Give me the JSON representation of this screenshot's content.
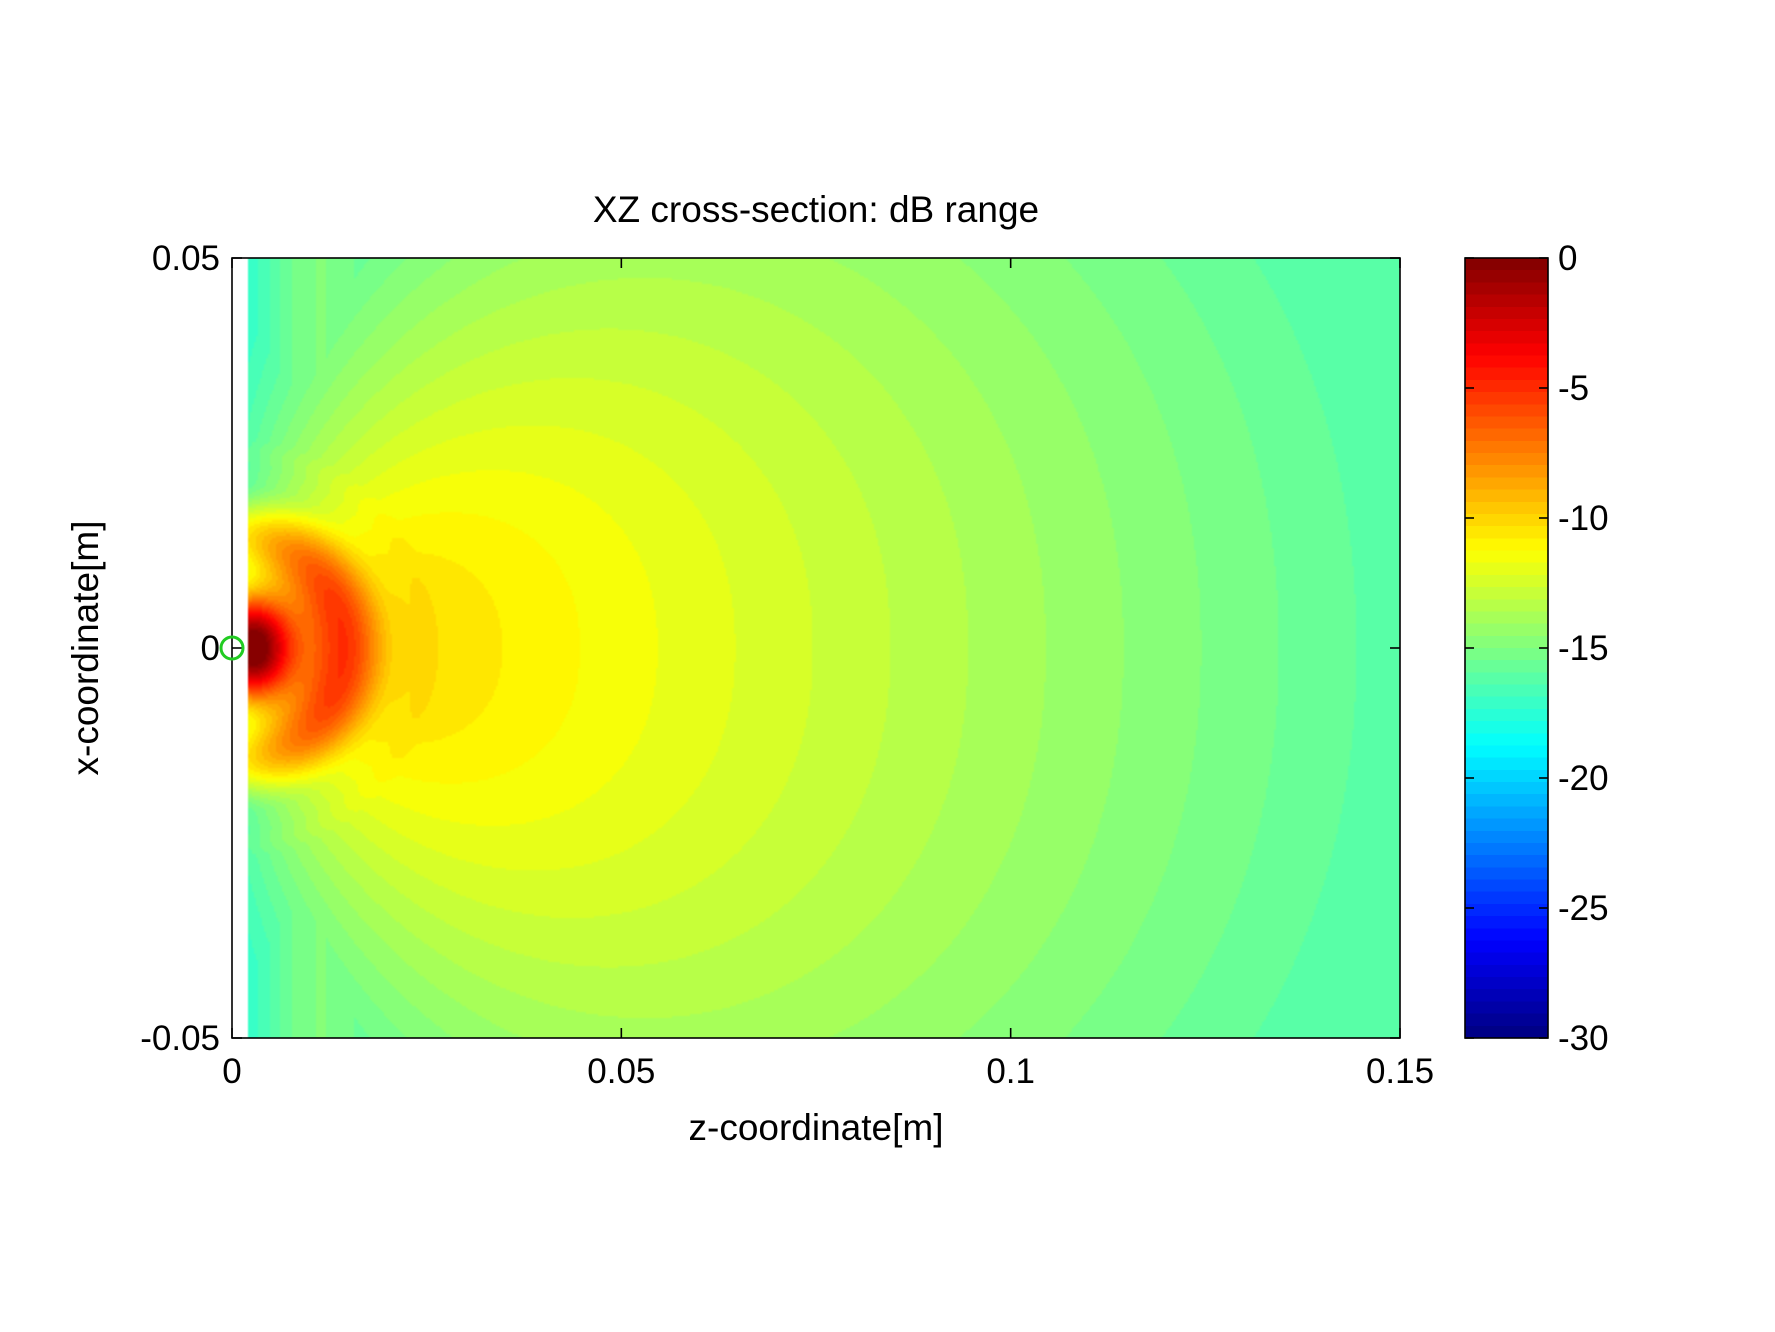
{
  "chart_data": {
    "type": "heatmap",
    "title": "XZ cross-section: dB range",
    "xlabel": "z-coordinate[m]",
    "ylabel": "x-coordinate[m]",
    "xlim": [
      0,
      0.15
    ],
    "ylim": [
      -0.05,
      0.05
    ],
    "x_ticks": [
      0,
      0.05,
      0.1,
      0.15
    ],
    "x_tick_labels": [
      "0",
      "0.05",
      "0.1",
      "0.15"
    ],
    "y_ticks": [
      -0.05,
      0,
      0.05
    ],
    "y_tick_labels": [
      "-0.05",
      "0",
      "0.05"
    ],
    "colorbar": {
      "colormap": "jet",
      "range": [
        -30,
        0
      ],
      "ticks": [
        0,
        -5,
        -10,
        -15,
        -20,
        -25,
        -30
      ],
      "tick_labels": [
        "0",
        "-5",
        "-10",
        "-15",
        "-20",
        "-25",
        "-30"
      ]
    },
    "marker": {
      "shape": "circle",
      "color": "#22cc22",
      "z": 0,
      "x": 0
    },
    "field_samples_dB": [
      {
        "z": 0.002,
        "x": 0,
        "value": -0.5
      },
      {
        "z": 0.006,
        "x": 0,
        "value": -4
      },
      {
        "z": 0.01,
        "x": 0,
        "value": -6.5
      },
      {
        "z": 0.017,
        "x": 0,
        "value": -8
      },
      {
        "z": 0.025,
        "x": 0,
        "value": -13
      },
      {
        "z": 0.05,
        "x": 0,
        "value": -11.5
      },
      {
        "z": 0.075,
        "x": 0,
        "value": -13
      },
      {
        "z": 0.1,
        "x": 0,
        "value": -15
      },
      {
        "z": 0.15,
        "x": 0,
        "value": -18
      },
      {
        "z": 0.005,
        "x": 0.035,
        "value": -17
      },
      {
        "z": 0.005,
        "x": -0.035,
        "value": -17
      },
      {
        "z": 0.05,
        "x": 0.045,
        "value": -13.5
      },
      {
        "z": 0.15,
        "x": 0.045,
        "value": -18.5
      }
    ],
    "grid": false,
    "legend": "none"
  }
}
